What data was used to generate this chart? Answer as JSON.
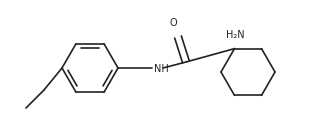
{
  "bg_color": "#ffffff",
  "bond_color": "#222222",
  "text_color": "#222222",
  "line_width": 1.2,
  "figsize": [
    3.15,
    1.2
  ],
  "dpi": 100,
  "O_label": "O",
  "NH_label": "NH",
  "H2N_label": "H₂N",
  "font_size_atoms": 7.0,
  "xlim": [
    0,
    315
  ],
  "ylim": [
    0,
    120
  ]
}
